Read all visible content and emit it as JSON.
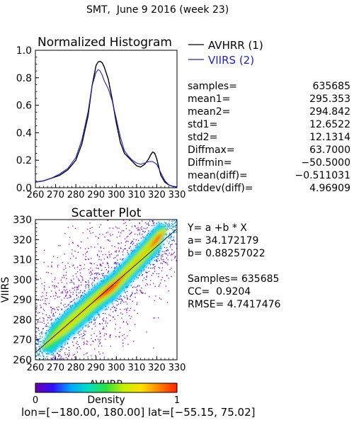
{
  "header": {
    "title": "SMT,  June 9 2016 (week 23)"
  },
  "footer": {
    "text": "lon=[−180.00, 180.00] lat=[−55.15, 75.02]"
  },
  "colors": {
    "avhrr": "#000000",
    "viirs": "#2020d0",
    "fit_line": "#000000"
  },
  "histogram_stats": [
    {
      "label": "samples=",
      "value": "635685"
    },
    {
      "label": "mean1=",
      "value": "295.353"
    },
    {
      "label": "mean2=",
      "value": "294.842"
    },
    {
      "label": "std1=",
      "value": "12.6522"
    },
    {
      "label": "std2=",
      "value": "12.1314"
    },
    {
      "label": "Diffmax=",
      "value": "63.7000"
    },
    {
      "label": "Diffmin=",
      "value": "−50.5000"
    },
    {
      "label": "mean(diff)=",
      "value": "−0.511031"
    },
    {
      "label": "stddev(diff)=",
      "value": "4.96909"
    }
  ],
  "scatter_stats": {
    "equation": "Y= a +b * X",
    "a": "a= 34.172179",
    "b": "b= 0.88257022",
    "samples": "Samples= 635685",
    "cc": "CC=  0.9204",
    "rmse": "RMSE= 4.7417476"
  },
  "colorbar": {
    "label": "Density",
    "min_label": "0",
    "max_label": "1",
    "stops": [
      "#6a00a8",
      "#3010ff",
      "#00a8ff",
      "#00e0c0",
      "#30e040",
      "#c8f000",
      "#ffe000",
      "#ff8000",
      "#ff2000"
    ]
  },
  "chart_data": [
    {
      "type": "line",
      "title": "Normalized Histogram",
      "xlabel": "",
      "ylabel": "",
      "xlim": [
        260,
        330
      ],
      "ylim": [
        0.0,
        1.0
      ],
      "xticks": [
        "260",
        "270",
        "280",
        "290",
        "300",
        "310",
        "320",
        "330"
      ],
      "yticks": [
        "0.0",
        "0.2",
        "0.4",
        "0.6",
        "0.8",
        "1.0"
      ],
      "legend_position": "top-right",
      "series": [
        {
          "name": "AVHRR (1)",
          "color": "#000000",
          "x": [
            260,
            264,
            268,
            272,
            276,
            280,
            283,
            286,
            288,
            290,
            291,
            292,
            293,
            294,
            296,
            298,
            300,
            302,
            304,
            306,
            308,
            310,
            312,
            314,
            316,
            317,
            318,
            319,
            320,
            321,
            322,
            324,
            326,
            328,
            330
          ],
          "y": [
            0.04,
            0.05,
            0.07,
            0.09,
            0.13,
            0.2,
            0.32,
            0.52,
            0.74,
            0.89,
            0.915,
            0.92,
            0.91,
            0.88,
            0.79,
            0.64,
            0.47,
            0.33,
            0.25,
            0.22,
            0.19,
            0.16,
            0.15,
            0.17,
            0.21,
            0.24,
            0.26,
            0.25,
            0.21,
            0.15,
            0.09,
            0.04,
            0.02,
            0.01,
            0.005
          ]
        },
        {
          "name": "VIIRS (2)",
          "color": "#2020d0",
          "x": [
            260,
            264,
            268,
            272,
            276,
            280,
            283,
            286,
            288,
            290,
            291,
            292,
            293,
            294,
            296,
            298,
            300,
            302,
            304,
            306,
            308,
            310,
            312,
            314,
            316,
            318,
            320,
            322,
            324,
            326,
            328,
            330
          ],
          "y": [
            0.04,
            0.05,
            0.07,
            0.1,
            0.14,
            0.22,
            0.35,
            0.55,
            0.74,
            0.84,
            0.86,
            0.85,
            0.82,
            0.78,
            0.72,
            0.63,
            0.5,
            0.37,
            0.27,
            0.23,
            0.2,
            0.18,
            0.17,
            0.18,
            0.19,
            0.19,
            0.17,
            0.11,
            0.05,
            0.02,
            0.01,
            0.005
          ]
        }
      ]
    },
    {
      "type": "heatmap",
      "title": "Scatter Plot",
      "xlabel": "AVHRR",
      "ylabel": "VIIRS",
      "xlim": [
        260,
        330
      ],
      "ylim": [
        260,
        330
      ],
      "xticks": [
        "260",
        "270",
        "280",
        "290",
        "300",
        "310",
        "320",
        "330"
      ],
      "yticks": [
        "260",
        "270",
        "280",
        "290",
        "300",
        "310",
        "320",
        "330"
      ],
      "fit_line": {
        "a": 34.172179,
        "b": 0.88257022
      },
      "density_centerline": [
        {
          "x": 261,
          "y": 264
        },
        {
          "x": 290,
          "y": 290
        },
        {
          "x": 300,
          "y": 298
        },
        {
          "x": 322,
          "y": 322
        }
      ],
      "cluster_peak": {
        "x": 297,
        "y": 296
      },
      "secondary_peak": {
        "x": 320,
        "y": 319
      }
    }
  ]
}
